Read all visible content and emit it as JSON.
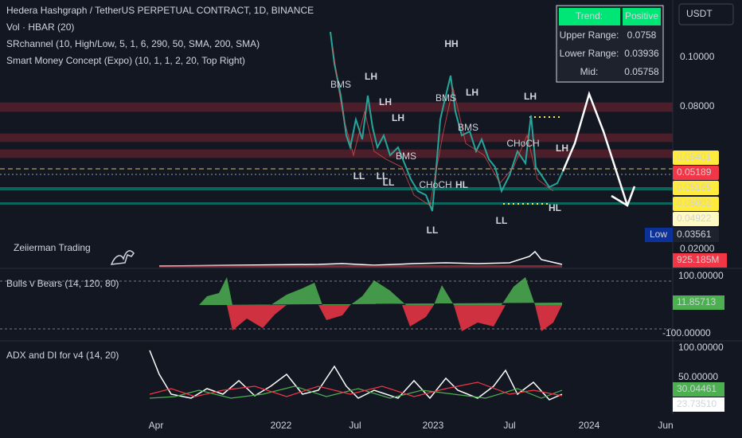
{
  "legend": [
    "Hedera Hashgraph / TetherUS PERPETUAL CONTRACT, 1D, BINANCE",
    "Vol · HBAR (20)",
    "SRchannel (10, High/Low, 5, 1, 6, 290, 50, SMA, 200, SMA)",
    "Smart Money Concept (Expo) (10, 1, 1, 2, 20, Top Right)"
  ],
  "currency": "USDT",
  "trend_table": {
    "rows": [
      [
        "Trend:",
        "Positive"
      ],
      [
        "Upper Range:",
        "0.0758"
      ],
      [
        "Lower Range:",
        "0.03936"
      ],
      [
        "Mid:",
        "0.05758"
      ]
    ]
  },
  "price_axis": [
    "0.10000",
    "0.08000",
    "0.02000"
  ],
  "price_tags": [
    "0.05401",
    "0.05189",
    "0.05165",
    "0.05002",
    "0.04922"
  ],
  "low_tag": {
    "label": "Low",
    "value": "0.03561"
  },
  "volume_tag": "925.185M",
  "watermark": "Zeiierman Trading",
  "annotations": [
    "LH",
    "HH",
    "LH",
    "LH",
    "LH",
    "LH",
    "LH",
    "BMS",
    "BMS",
    "BMS",
    "BMS",
    "CHoCH",
    "CHoCH",
    "LL",
    "LL",
    "LL",
    "HL",
    "LL",
    "LL",
    "HL"
  ],
  "bulls_bears": {
    "title": "Bulls v Bears (14, 120, 80)",
    "axis": [
      "100.00000",
      "-100.00000"
    ],
    "tag": "11.85713"
  },
  "adx": {
    "title": "ADX and DI for v4 (14, 20)",
    "axis": [
      "100.00000",
      "50.00000"
    ],
    "tags": [
      "30.04461",
      "23.73510"
    ]
  },
  "time_axis": [
    "Apr",
    "2022",
    "Jul",
    "2023",
    "Jul",
    "2024",
    "Jun"
  ]
}
